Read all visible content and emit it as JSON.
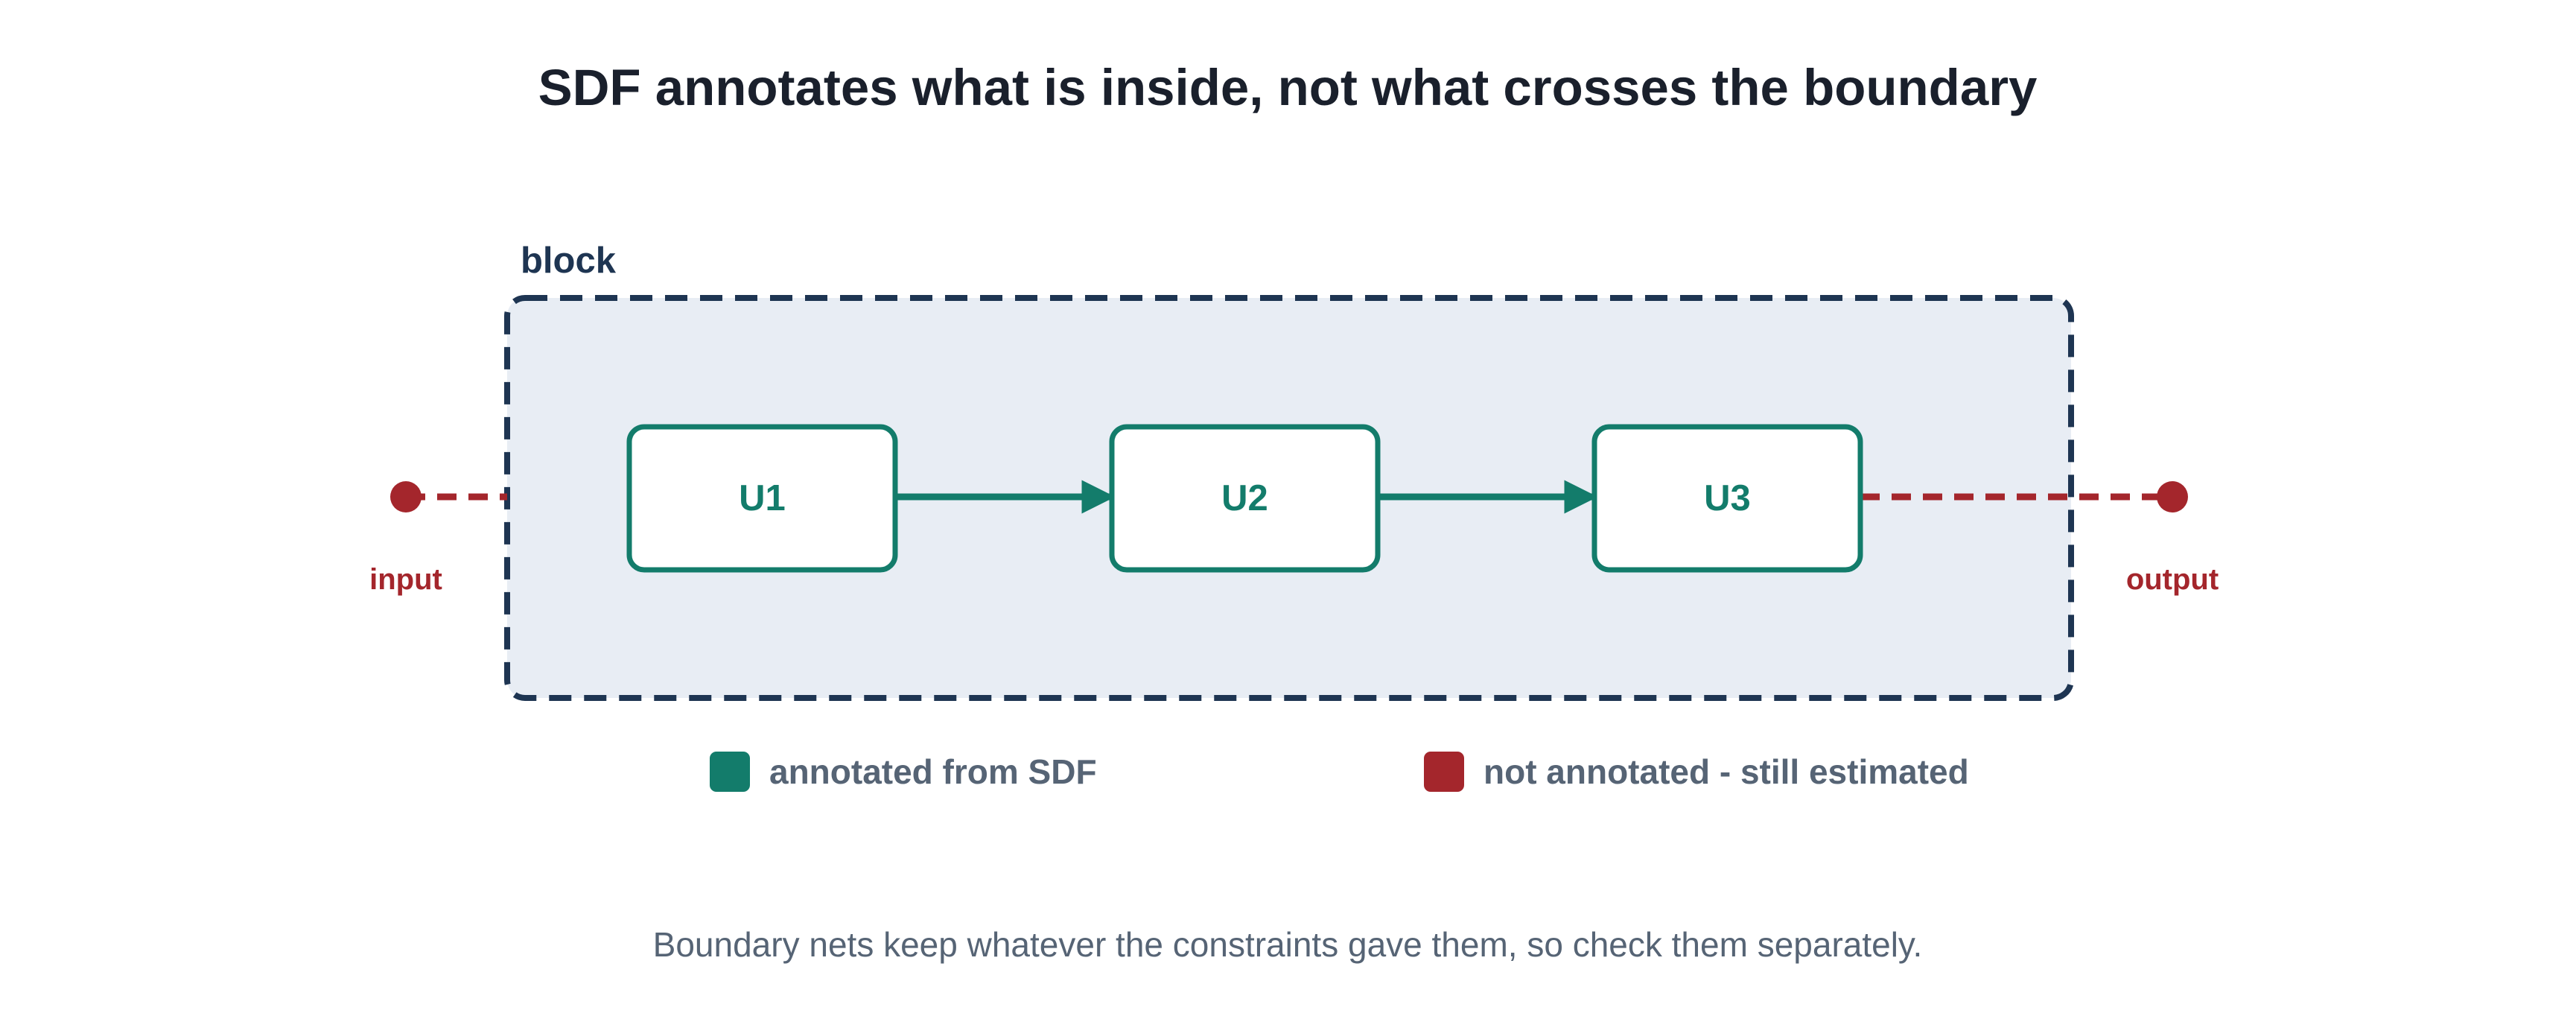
{
  "title": "SDF annotates what is inside, not what crosses the boundary",
  "block": {
    "label": "block"
  },
  "nodes": [
    {
      "id": "u1",
      "label": "U1"
    },
    {
      "id": "u2",
      "label": "U2"
    },
    {
      "id": "u3",
      "label": "U3"
    }
  ],
  "edges": [
    {
      "from": "U1",
      "to": "U2",
      "kind": "annotated"
    },
    {
      "from": "U2",
      "to": "U3",
      "kind": "annotated"
    }
  ],
  "ports": {
    "input": {
      "label": "input"
    },
    "output": {
      "label": "output"
    }
  },
  "legend": {
    "annotated": "annotated from SDF",
    "not_annotated": "not annotated - still estimated"
  },
  "caption": "Boundary nets keep whatever the constraints gave them, so check them separately.",
  "colors": {
    "title": "#1a202c",
    "block_border": "#1e3552",
    "block_fill": "#e8edf4",
    "annotated": "#137c6b",
    "not_annotated": "#a4262c",
    "legend_text": "#566475",
    "caption_text": "#566475",
    "node_fill": "#ffffff"
  }
}
